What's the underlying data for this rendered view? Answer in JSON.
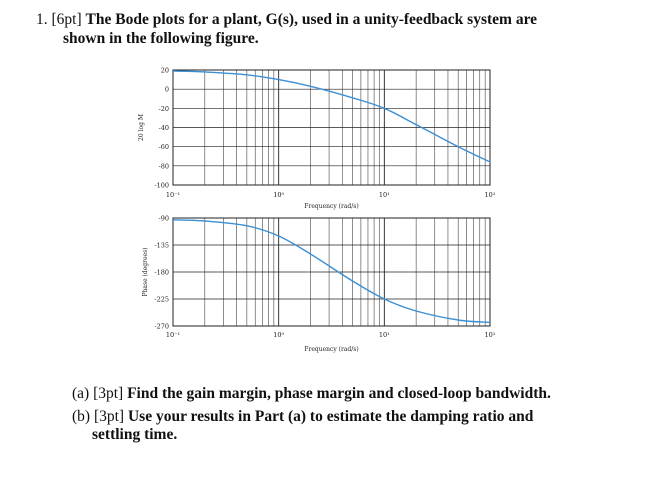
{
  "problem": {
    "number": "1.",
    "points": "[6pt]",
    "text_line1": "The Bode plots for a plant, G(s), used in a unity-feedback system are",
    "text_line2": "shown in the following figure.",
    "part_a_label": "(a)",
    "part_a_points": "[3pt]",
    "part_a_text": "Find the gain margin, phase margin and closed-loop bandwidth.",
    "part_b_label": "(b)",
    "part_b_points": "[3pt]",
    "part_b_text_line1": "Use your results in Part (a) to estimate the damping ratio and",
    "part_b_text_line2": "settling time."
  },
  "chart_data": [
    {
      "type": "line",
      "ylabel": "20 log M",
      "xlabel": "Frequency (rad/s)",
      "x_scale": "log",
      "xlim": [
        0.1,
        100
      ],
      "ylim": [
        -100,
        20
      ],
      "x_tick_labels": [
        "10⁻¹",
        "10⁰",
        "10¹",
        "10²"
      ],
      "y_tick_labels": [
        "20",
        "0",
        "-20",
        "-40",
        "-60",
        "-80",
        "-100"
      ],
      "grid": true,
      "series": [
        {
          "color": "#3b8fd4",
          "x": [
            0.1,
            0.2,
            0.5,
            1,
            2,
            5,
            10,
            20,
            50,
            100
          ],
          "y": [
            19,
            18,
            15,
            10,
            3,
            -9,
            -20,
            -37,
            -60,
            -76
          ]
        }
      ]
    },
    {
      "type": "line",
      "ylabel": "Phase (degrees)",
      "xlabel": "Frequency (rad/s)",
      "x_scale": "log",
      "xlim": [
        0.1,
        100
      ],
      "ylim": [
        -270,
        -90
      ],
      "x_tick_labels": [
        "10⁻¹",
        "10⁰",
        "10¹",
        "10²"
      ],
      "y_tick_labels": [
        "-90",
        "-135",
        "-180",
        "-225",
        "-270"
      ],
      "grid": true,
      "series": [
        {
          "color": "#3b8fd4",
          "x": [
            0.1,
            0.2,
            0.5,
            1,
            2,
            5,
            10,
            20,
            50,
            100
          ],
          "y": [
            -93,
            -95,
            -103,
            -120,
            -150,
            -195,
            -225,
            -245,
            -260,
            -264
          ]
        }
      ]
    }
  ]
}
